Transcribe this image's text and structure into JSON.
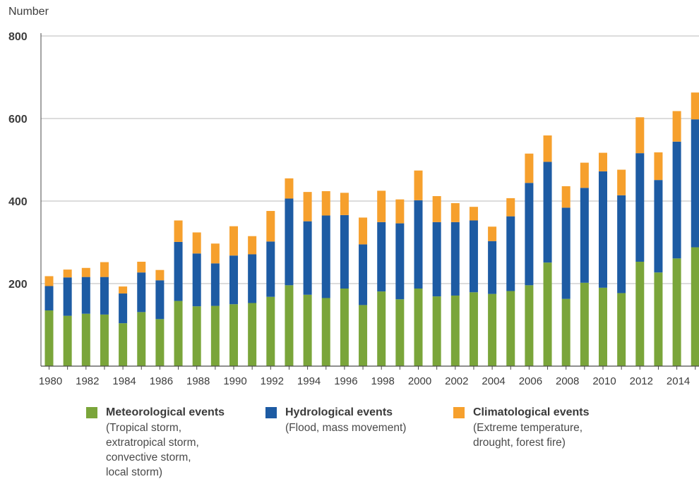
{
  "chart_data": {
    "type": "bar",
    "stacked": true,
    "ylabel": "Number",
    "ylim": [
      0,
      800
    ],
    "yticks": [
      200,
      400,
      600,
      800
    ],
    "grid": true,
    "legend_position": "bottom",
    "categories": [
      "1980",
      "1981",
      "1982",
      "1983",
      "1984",
      "1985",
      "1986",
      "1987",
      "1988",
      "1989",
      "1990",
      "1991",
      "1992",
      "1993",
      "1994",
      "1995",
      "1996",
      "1997",
      "1998",
      "1999",
      "2000",
      "2001",
      "2002",
      "2003",
      "2004",
      "2005",
      "2006",
      "2007",
      "2008",
      "2009",
      "2010",
      "2011",
      "2012",
      "2013",
      "2014",
      "2015"
    ],
    "xtick_labels": [
      "1980",
      "1982",
      "1984",
      "1986",
      "1988",
      "1990",
      "1992",
      "1994",
      "1996",
      "1998",
      "2000",
      "2002",
      "2004",
      "2006",
      "2008",
      "2010",
      "2012",
      "2014"
    ],
    "series": [
      {
        "name": "Meteorological events",
        "color": "#7aa53a",
        "values": [
          135,
          122,
          127,
          125,
          104,
          131,
          114,
          158,
          145,
          146,
          150,
          153,
          168,
          196,
          173,
          165,
          188,
          148,
          181,
          162,
          188,
          169,
          171,
          179,
          175,
          182,
          196,
          251,
          163,
          202,
          190,
          177,
          253,
          227,
          261,
          288
        ]
      },
      {
        "name": "Hydrological events",
        "color": "#1d5ba3",
        "values": [
          59,
          93,
          89,
          91,
          72,
          96,
          94,
          143,
          128,
          103,
          118,
          118,
          134,
          210,
          178,
          200,
          178,
          147,
          168,
          184,
          214,
          180,
          178,
          174,
          128,
          181,
          248,
          244,
          221,
          230,
          282,
          237,
          263,
          224,
          283,
          310
        ]
      },
      {
        "name": "Climatological events",
        "color": "#f6a02d",
        "values": [
          24,
          19,
          22,
          36,
          17,
          26,
          25,
          52,
          51,
          48,
          71,
          44,
          74,
          49,
          71,
          59,
          54,
          65,
          76,
          58,
          72,
          63,
          46,
          33,
          35,
          44,
          71,
          64,
          52,
          61,
          45,
          62,
          87,
          67,
          74,
          65
        ]
      }
    ]
  },
  "legend": [
    {
      "name": "Meteorological events",
      "desc": "(Tropical storm,\nextratropical storm,\nconvective storm,\nlocal storm)",
      "color": "#7aa53a"
    },
    {
      "name": "Hydrological events",
      "desc": "(Flood, mass movement)",
      "color": "#1d5ba3"
    },
    {
      "name": "Climatological events",
      "desc": "(Extreme temperature,\ndrought, forest fire)",
      "color": "#f6a02d"
    }
  ]
}
